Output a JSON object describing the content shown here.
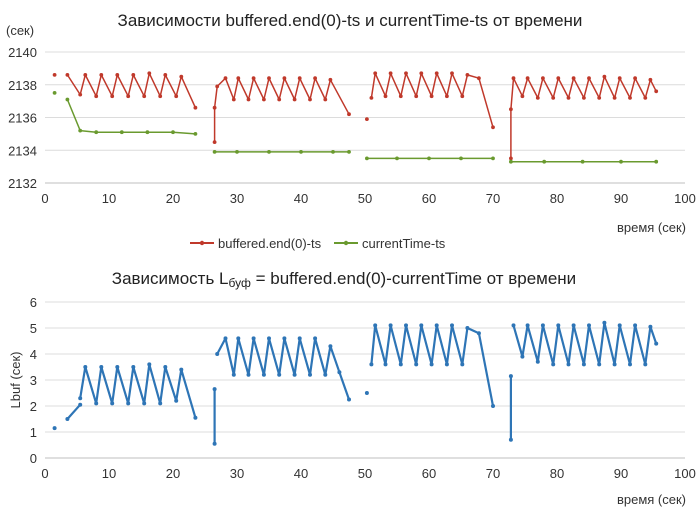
{
  "chart_data": [
    {
      "type": "line",
      "title": "Зависимости buffered.end(0)-ts и currentTime-ts от времени",
      "ylabel": "(сек)",
      "xlabel": "время (сек)",
      "xlim": [
        0,
        100
      ],
      "ylim": [
        2132,
        2140
      ],
      "xticks": [
        0,
        10,
        20,
        30,
        40,
        50,
        60,
        70,
        80,
        90,
        100
      ],
      "yticks": [
        2132,
        2134,
        2136,
        2138,
        2140
      ],
      "grid": "horizontal",
      "legend": "bottom",
      "series": [
        {
          "name": "buffered.end(0)-ts",
          "color": "#c0392b",
          "segments": [
            [
              [
                1.5,
                2138.6
              ]
            ],
            [
              [
                3.5,
                2138.6
              ],
              [
                5.5,
                2137.4
              ],
              [
                6.3,
                2138.6
              ],
              [
                8.0,
                2137.3
              ],
              [
                8.8,
                2138.6
              ],
              [
                10.5,
                2137.3
              ],
              [
                11.3,
                2138.6
              ],
              [
                13.0,
                2137.3
              ],
              [
                13.8,
                2138.6
              ],
              [
                15.5,
                2137.3
              ],
              [
                16.3,
                2138.7
              ],
              [
                18.0,
                2137.3
              ],
              [
                18.8,
                2138.6
              ],
              [
                20.5,
                2137.3
              ],
              [
                21.3,
                2138.5
              ],
              [
                23.5,
                2136.6
              ]
            ],
            [
              [
                26.5,
                2134.5
              ],
              [
                26.5,
                2136.6
              ],
              [
                26.9,
                2137.9
              ],
              [
                28.2,
                2138.4
              ],
              [
                29.5,
                2137.1
              ],
              [
                30.2,
                2138.4
              ],
              [
                31.8,
                2137.1
              ],
              [
                32.6,
                2138.4
              ],
              [
                34.2,
                2137.1
              ],
              [
                35.0,
                2138.4
              ],
              [
                36.6,
                2137.1
              ],
              [
                37.4,
                2138.4
              ],
              [
                39.0,
                2137.1
              ],
              [
                39.8,
                2138.4
              ],
              [
                41.4,
                2137.1
              ],
              [
                42.2,
                2138.4
              ],
              [
                43.8,
                2137.1
              ],
              [
                44.6,
                2138.3
              ],
              [
                47.5,
                2136.2
              ]
            ],
            [
              [
                50.3,
                2135.9
              ]
            ],
            [
              [
                51.0,
                2137.2
              ],
              [
                51.6,
                2138.7
              ],
              [
                53.2,
                2137.3
              ],
              [
                54.0,
                2138.7
              ],
              [
                55.6,
                2137.3
              ],
              [
                56.4,
                2138.7
              ],
              [
                58.0,
                2137.3
              ],
              [
                58.8,
                2138.7
              ],
              [
                60.4,
                2137.3
              ],
              [
                61.2,
                2138.7
              ],
              [
                62.8,
                2137.3
              ],
              [
                63.6,
                2138.7
              ],
              [
                65.2,
                2137.3
              ],
              [
                66.0,
                2138.6
              ],
              [
                67.8,
                2138.4
              ],
              [
                70.0,
                2135.4
              ]
            ],
            [
              [
                72.8,
                2133.5
              ],
              [
                72.8,
                2136.5
              ],
              [
                73.2,
                2138.4
              ],
              [
                74.6,
                2137.3
              ],
              [
                75.4,
                2138.4
              ],
              [
                77.0,
                2137.2
              ],
              [
                77.8,
                2138.4
              ],
              [
                79.4,
                2137.2
              ],
              [
                80.2,
                2138.4
              ],
              [
                81.8,
                2137.2
              ],
              [
                82.6,
                2138.4
              ],
              [
                84.2,
                2137.2
              ],
              [
                85.0,
                2138.4
              ],
              [
                86.6,
                2137.2
              ],
              [
                87.4,
                2138.5
              ],
              [
                89.0,
                2137.2
              ],
              [
                89.8,
                2138.4
              ],
              [
                91.4,
                2137.2
              ],
              [
                92.2,
                2138.4
              ],
              [
                93.8,
                2137.2
              ],
              [
                94.6,
                2138.3
              ],
              [
                95.5,
                2137.6
              ]
            ]
          ]
        },
        {
          "name": "currentTime-ts",
          "color": "#6a9a2f",
          "segments": [
            [
              [
                1.5,
                2137.5
              ]
            ],
            [
              [
                3.5,
                2137.1
              ],
              [
                5.5,
                2135.2
              ],
              [
                8.0,
                2135.1
              ],
              [
                12.0,
                2135.1
              ],
              [
                16.0,
                2135.1
              ],
              [
                20.0,
                2135.1
              ],
              [
                23.5,
                2135.0
              ]
            ],
            [
              [
                26.5,
                2133.9
              ],
              [
                30.0,
                2133.9
              ],
              [
                35.0,
                2133.9
              ],
              [
                40.0,
                2133.9
              ],
              [
                45.0,
                2133.9
              ],
              [
                47.5,
                2133.9
              ]
            ],
            [
              [
                50.3,
                2133.5
              ],
              [
                55.0,
                2133.5
              ],
              [
                60.0,
                2133.5
              ],
              [
                65.0,
                2133.5
              ],
              [
                70.0,
                2133.5
              ]
            ],
            [
              [
                72.8,
                2133.3
              ],
              [
                78.0,
                2133.3
              ],
              [
                84.0,
                2133.3
              ],
              [
                90.0,
                2133.3
              ],
              [
                95.5,
                2133.3
              ]
            ]
          ]
        }
      ]
    },
    {
      "type": "line",
      "title": "Зависимость Lбуф = buffered.end(0)-currentTime от времени",
      "title_parts": {
        "pre": "Зависимость L",
        "sub": "буф",
        "post": " = buffered.end(0)-currentTime от времени"
      },
      "ylabel": "Lbuf (сек)",
      "xlabel": "время (сек)",
      "xlim": [
        0,
        100
      ],
      "ylim": [
        0,
        6
      ],
      "xticks": [
        0,
        10,
        20,
        30,
        40,
        50,
        60,
        70,
        80,
        90,
        100
      ],
      "yticks": [
        0,
        1,
        2,
        3,
        4,
        5,
        6
      ],
      "grid": "horizontal",
      "legend": "none",
      "series": [
        {
          "color": "#2e75b6",
          "segments": [
            [
              [
                1.5,
                1.15
              ]
            ],
            [
              [
                3.5,
                1.5
              ],
              [
                5.5,
                2.05
              ]
            ],
            [
              [
                5.5,
                2.3
              ],
              [
                6.3,
                3.5
              ],
              [
                8.0,
                2.1
              ],
              [
                8.8,
                3.5
              ],
              [
                10.5,
                2.1
              ],
              [
                11.3,
                3.5
              ],
              [
                13.0,
                2.1
              ],
              [
                13.8,
                3.5
              ],
              [
                15.5,
                2.1
              ],
              [
                16.3,
                3.6
              ],
              [
                18.0,
                2.1
              ],
              [
                18.8,
                3.5
              ],
              [
                20.5,
                2.2
              ],
              [
                21.3,
                3.4
              ],
              [
                23.5,
                1.55
              ]
            ],
            [
              [
                26.5,
                0.55
              ],
              [
                26.5,
                2.65
              ]
            ],
            [
              [
                26.9,
                4.0
              ],
              [
                28.2,
                4.6
              ],
              [
                29.5,
                3.2
              ],
              [
                30.2,
                4.6
              ],
              [
                31.8,
                3.2
              ],
              [
                32.6,
                4.6
              ],
              [
                34.2,
                3.2
              ],
              [
                35.0,
                4.6
              ],
              [
                36.6,
                3.2
              ],
              [
                37.4,
                4.6
              ],
              [
                39.0,
                3.2
              ],
              [
                39.8,
                4.6
              ],
              [
                41.4,
                3.2
              ],
              [
                42.2,
                4.6
              ],
              [
                43.8,
                3.2
              ],
              [
                44.6,
                4.3
              ],
              [
                46.0,
                3.3
              ],
              [
                47.5,
                2.25
              ]
            ],
            [
              [
                50.3,
                2.5
              ]
            ],
            [
              [
                51.0,
                3.6
              ],
              [
                51.6,
                5.1
              ],
              [
                53.2,
                3.6
              ],
              [
                54.0,
                5.1
              ],
              [
                55.6,
                3.6
              ],
              [
                56.4,
                5.1
              ],
              [
                58.0,
                3.6
              ],
              [
                58.8,
                5.1
              ],
              [
                60.4,
                3.6
              ],
              [
                61.2,
                5.1
              ],
              [
                62.8,
                3.6
              ],
              [
                63.6,
                5.1
              ],
              [
                65.2,
                3.6
              ],
              [
                66.0,
                5.0
              ],
              [
                67.8,
                4.8
              ],
              [
                70.0,
                2.0
              ]
            ],
            [
              [
                72.8,
                0.7
              ],
              [
                72.8,
                3.15
              ]
            ],
            [
              [
                73.2,
                5.1
              ],
              [
                74.6,
                3.9
              ],
              [
                75.4,
                5.1
              ],
              [
                77.0,
                3.7
              ],
              [
                77.8,
                5.1
              ],
              [
                79.4,
                3.6
              ],
              [
                80.2,
                5.1
              ],
              [
                81.8,
                3.6
              ],
              [
                82.6,
                5.1
              ],
              [
                84.2,
                3.6
              ],
              [
                85.0,
                5.1
              ],
              [
                86.6,
                3.6
              ],
              [
                87.4,
                5.2
              ],
              [
                89.0,
                3.6
              ],
              [
                89.8,
                5.1
              ],
              [
                91.4,
                3.6
              ],
              [
                92.2,
                5.1
              ],
              [
                93.8,
                3.6
              ],
              [
                94.6,
                5.05
              ],
              [
                95.5,
                4.4
              ]
            ]
          ]
        }
      ]
    }
  ]
}
